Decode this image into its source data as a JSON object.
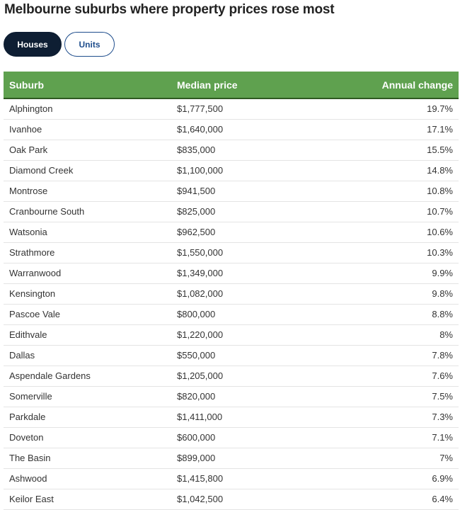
{
  "title": "Melbourne suburbs where property prices rose most",
  "tabs": {
    "houses": "Houses",
    "units": "Units",
    "selected": "Houses"
  },
  "table": {
    "headers": {
      "suburb": "Suburb",
      "median_price": "Median price",
      "annual_change": "Annual change"
    },
    "rows": [
      {
        "suburb": "Alphington",
        "median_price": "$1,777,500",
        "annual_change": "19.7%"
      },
      {
        "suburb": "Ivanhoe",
        "median_price": "$1,640,000",
        "annual_change": "17.1%"
      },
      {
        "suburb": "Oak Park",
        "median_price": "$835,000",
        "annual_change": "15.5%"
      },
      {
        "suburb": "Diamond Creek",
        "median_price": "$1,100,000",
        "annual_change": "14.8%"
      },
      {
        "suburb": "Montrose",
        "median_price": "$941,500",
        "annual_change": "10.8%"
      },
      {
        "suburb": "Cranbourne South",
        "median_price": "$825,000",
        "annual_change": "10.7%"
      },
      {
        "suburb": "Watsonia",
        "median_price": "$962,500",
        "annual_change": "10.6%"
      },
      {
        "suburb": "Strathmore",
        "median_price": "$1,550,000",
        "annual_change": "10.3%"
      },
      {
        "suburb": "Warranwood",
        "median_price": "$1,349,000",
        "annual_change": "9.9%"
      },
      {
        "suburb": "Kensington",
        "median_price": "$1,082,000",
        "annual_change": "9.8%"
      },
      {
        "suburb": "Pascoe Vale",
        "median_price": "$800,000",
        "annual_change": "8.8%"
      },
      {
        "suburb": "Edithvale",
        "median_price": "$1,220,000",
        "annual_change": "8%"
      },
      {
        "suburb": "Dallas",
        "median_price": "$550,000",
        "annual_change": "7.8%"
      },
      {
        "suburb": "Aspendale Gardens",
        "median_price": "$1,205,000",
        "annual_change": "7.6%"
      },
      {
        "suburb": "Somerville",
        "median_price": "$820,000",
        "annual_change": "7.5%"
      },
      {
        "suburb": "Parkdale",
        "median_price": "$1,411,000",
        "annual_change": "7.3%"
      },
      {
        "suburb": "Doveton",
        "median_price": "$600,000",
        "annual_change": "7.1%"
      },
      {
        "suburb": "The Basin",
        "median_price": "$899,000",
        "annual_change": "7%"
      },
      {
        "suburb": "Ashwood",
        "median_price": "$1,415,800",
        "annual_change": "6.9%"
      },
      {
        "suburb": "Keilor East",
        "median_price": "$1,042,500",
        "annual_change": "6.4%"
      }
    ]
  },
  "colors": {
    "header_green": "#5fa14f",
    "active_tab": "#0e1e33",
    "inactive_tab_text": "#1e4d8c"
  }
}
